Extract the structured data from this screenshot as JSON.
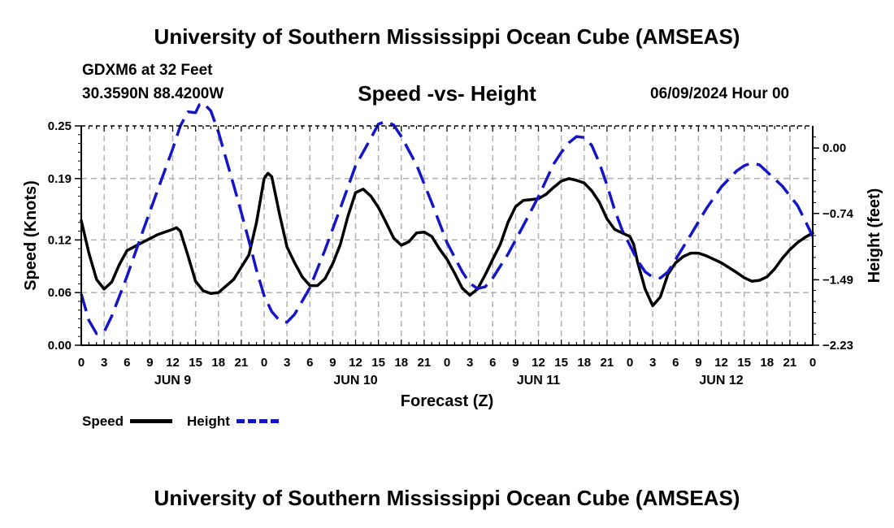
{
  "header": {
    "title": "University of Southern Mississippi Ocean Cube (AMSEAS)",
    "station": "GDXM6 at 32 Feet",
    "coordinates": "30.3590N  88.4200W",
    "subtitle": "Speed -vs- Height",
    "datetime": "06/09/2024 Hour 00"
  },
  "footer": {
    "title": "University of Southern Mississippi Ocean Cube (AMSEAS)"
  },
  "legend": {
    "speed_label": "Speed",
    "height_label": "Height"
  },
  "chart_data": {
    "type": "line",
    "xlabel": "Forecast (Z)",
    "ylabel": "Speed (Knots)",
    "y2label": "Height (feet)",
    "xlim": [
      0,
      96
    ],
    "ylim": [
      0,
      0.25
    ],
    "y2lim": [
      -2.23,
      0.25
    ],
    "x_tick_values": [
      0,
      3,
      6,
      9,
      12,
      15,
      18,
      21,
      24,
      27,
      30,
      33,
      36,
      39,
      42,
      45,
      48,
      51,
      54,
      57,
      60,
      63,
      66,
      69,
      72,
      75,
      78,
      81,
      84,
      87,
      90,
      93,
      96
    ],
    "x_tick_labels": [
      "0",
      "3",
      "6",
      "9",
      "12",
      "15",
      "18",
      "21",
      "0",
      "3",
      "6",
      "9",
      "12",
      "15",
      "18",
      "21",
      "0",
      "3",
      "6",
      "9",
      "12",
      "15",
      "18",
      "21",
      "0",
      "3",
      "6",
      "9",
      "12",
      "15",
      "18",
      "21",
      "0"
    ],
    "day_labels": [
      {
        "x": 12,
        "label": "JUN 9"
      },
      {
        "x": 36,
        "label": "JUN 10"
      },
      {
        "x": 60,
        "label": "JUN 11"
      },
      {
        "x": 84,
        "label": "JUN 12"
      }
    ],
    "y_ticks": [
      0.0,
      0.06,
      0.12,
      0.19,
      0.25
    ],
    "y_tick_labels": [
      "0.00",
      "0.06",
      "0.12",
      "0.19",
      "0.25"
    ],
    "y2_ticks": [
      -2.23,
      -1.49,
      -0.74,
      0.0
    ],
    "y2_tick_labels": [
      "−2.23",
      "−1.49",
      "−0.74",
      "0.00"
    ],
    "grid": true,
    "series": [
      {
        "name": "Speed",
        "axis": "left",
        "color": "#000000",
        "style": "solid",
        "points": [
          [
            0,
            0.142
          ],
          [
            1,
            0.105
          ],
          [
            2,
            0.075
          ],
          [
            3,
            0.064
          ],
          [
            4,
            0.072
          ],
          [
            5,
            0.092
          ],
          [
            6,
            0.108
          ],
          [
            8,
            0.117
          ],
          [
            10,
            0.126
          ],
          [
            12,
            0.132
          ],
          [
            12.5,
            0.134
          ],
          [
            13,
            0.13
          ],
          [
            14,
            0.102
          ],
          [
            15,
            0.073
          ],
          [
            16,
            0.062
          ],
          [
            17,
            0.059
          ],
          [
            18,
            0.06
          ],
          [
            20,
            0.075
          ],
          [
            22,
            0.103
          ],
          [
            23,
            0.14
          ],
          [
            24,
            0.19
          ],
          [
            24.5,
            0.196
          ],
          [
            25,
            0.192
          ],
          [
            26,
            0.15
          ],
          [
            27,
            0.112
          ],
          [
            28,
            0.094
          ],
          [
            29,
            0.078
          ],
          [
            30,
            0.068
          ],
          [
            31,
            0.068
          ],
          [
            32,
            0.076
          ],
          [
            33,
            0.093
          ],
          [
            34,
            0.115
          ],
          [
            35,
            0.147
          ],
          [
            36,
            0.174
          ],
          [
            37,
            0.178
          ],
          [
            38,
            0.17
          ],
          [
            39,
            0.157
          ],
          [
            40,
            0.14
          ],
          [
            41,
            0.122
          ],
          [
            42,
            0.114
          ],
          [
            43,
            0.118
          ],
          [
            44,
            0.128
          ],
          [
            45,
            0.129
          ],
          [
            46,
            0.124
          ],
          [
            47,
            0.11
          ],
          [
            48,
            0.098
          ],
          [
            49,
            0.082
          ],
          [
            50,
            0.065
          ],
          [
            51,
            0.057
          ],
          [
            52,
            0.064
          ],
          [
            53,
            0.08
          ],
          [
            54,
            0.098
          ],
          [
            55,
            0.115
          ],
          [
            56,
            0.14
          ],
          [
            57,
            0.158
          ],
          [
            58,
            0.165
          ],
          [
            59,
            0.166
          ],
          [
            60,
            0.167
          ],
          [
            61,
            0.172
          ],
          [
            62,
            0.18
          ],
          [
            63,
            0.187
          ],
          [
            64,
            0.19
          ],
          [
            65,
            0.188
          ],
          [
            66,
            0.185
          ],
          [
            67,
            0.176
          ],
          [
            68,
            0.163
          ],
          [
            69,
            0.144
          ],
          [
            70,
            0.132
          ],
          [
            71,
            0.128
          ],
          [
            72,
            0.124
          ],
          [
            72.5,
            0.115
          ],
          [
            73,
            0.095
          ],
          [
            74,
            0.064
          ],
          [
            75,
            0.045
          ],
          [
            76,
            0.055
          ],
          [
            77,
            0.081
          ],
          [
            78,
            0.094
          ],
          [
            79,
            0.101
          ],
          [
            80,
            0.105
          ],
          [
            81,
            0.105
          ],
          [
            82,
            0.102
          ],
          [
            84,
            0.094
          ],
          [
            86,
            0.083
          ],
          [
            87,
            0.077
          ],
          [
            88,
            0.073
          ],
          [
            89,
            0.074
          ],
          [
            90,
            0.078
          ],
          [
            91,
            0.087
          ],
          [
            92,
            0.099
          ],
          [
            93,
            0.109
          ],
          [
            94,
            0.117
          ],
          [
            95,
            0.123
          ],
          [
            96,
            0.128
          ]
        ]
      },
      {
        "name": "Height",
        "axis": "right",
        "color": "#1515c8",
        "style": "dashed",
        "points": [
          [
            0,
            -1.65
          ],
          [
            1,
            -1.95
          ],
          [
            2,
            -2.1
          ],
          [
            3,
            -2.08
          ],
          [
            4,
            -1.9
          ],
          [
            6,
            -1.45
          ],
          [
            8,
            -0.96
          ],
          [
            10,
            -0.48
          ],
          [
            12,
            -0.01
          ],
          [
            13,
            0.25
          ],
          [
            14,
            0.41
          ],
          [
            15,
            0.4
          ],
          [
            15.5,
            0.49
          ],
          [
            16,
            0.51
          ],
          [
            17,
            0.42
          ],
          [
            18,
            0.18
          ],
          [
            19,
            -0.12
          ],
          [
            20,
            -0.42
          ],
          [
            21,
            -0.73
          ],
          [
            22,
            -1.05
          ],
          [
            23,
            -1.38
          ],
          [
            24,
            -1.67
          ],
          [
            25,
            -1.85
          ],
          [
            26,
            -1.95
          ],
          [
            27,
            -1.97
          ],
          [
            28,
            -1.88
          ],
          [
            30,
            -1.58
          ],
          [
            32,
            -1.15
          ],
          [
            34,
            -0.68
          ],
          [
            36,
            -0.2
          ],
          [
            38,
            0.11
          ],
          [
            39,
            0.27
          ],
          [
            40,
            0.3
          ],
          [
            41,
            0.26
          ],
          [
            42,
            0.13
          ],
          [
            44,
            -0.19
          ],
          [
            46,
            -0.62
          ],
          [
            48,
            -1.07
          ],
          [
            50,
            -1.4
          ],
          [
            51,
            -1.53
          ],
          [
            52,
            -1.59
          ],
          [
            53,
            -1.57
          ],
          [
            54,
            -1.47
          ],
          [
            56,
            -1.2
          ],
          [
            58,
            -0.88
          ],
          [
            60,
            -0.55
          ],
          [
            62,
            -0.18
          ],
          [
            63,
            -0.05
          ],
          [
            64,
            0.06
          ],
          [
            65,
            0.13
          ],
          [
            66,
            0.12
          ],
          [
            67,
            0.03
          ],
          [
            68,
            -0.17
          ],
          [
            69,
            -0.42
          ],
          [
            70,
            -0.7
          ],
          [
            71,
            -0.93
          ],
          [
            72,
            -1.1
          ],
          [
            73,
            -1.27
          ],
          [
            74,
            -1.4
          ],
          [
            75,
            -1.46
          ],
          [
            76,
            -1.47
          ],
          [
            77,
            -1.4
          ],
          [
            78,
            -1.26
          ],
          [
            80,
            -0.98
          ],
          [
            82,
            -0.69
          ],
          [
            84,
            -0.44
          ],
          [
            86,
            -0.26
          ],
          [
            87,
            -0.2
          ],
          [
            88,
            -0.17
          ],
          [
            89,
            -0.19
          ],
          [
            90,
            -0.27
          ],
          [
            92,
            -0.43
          ],
          [
            94,
            -0.65
          ],
          [
            95,
            -0.82
          ],
          [
            96,
            -1.0
          ]
        ]
      }
    ]
  }
}
